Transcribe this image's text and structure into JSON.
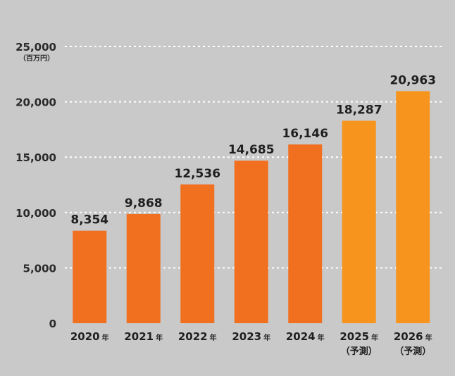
{
  "chart_data": {
    "type": "bar",
    "unit_label": "（百万円）",
    "categories": [
      "2020",
      "2021",
      "2022",
      "2023",
      "2024",
      "2025",
      "2026"
    ],
    "category_suffix": "年",
    "category_notes": [
      "",
      "",
      "",
      "",
      "",
      "（予測）",
      "（予測）"
    ],
    "values": [
      8354,
      9868,
      12536,
      14685,
      16146,
      18287,
      20963
    ],
    "value_labels": [
      "8,354",
      "9,868",
      "12,536",
      "14,685",
      "16,146",
      "18,287",
      "20,963"
    ],
    "forecast": [
      false,
      false,
      false,
      false,
      false,
      true,
      true
    ],
    "ylim": [
      0,
      25000
    ],
    "yticks": [
      0,
      5000,
      10000,
      15000,
      20000,
      25000
    ],
    "ytick_labels": [
      "0",
      "5,000",
      "10,000",
      "15,000",
      "20,000",
      "25,000"
    ],
    "grid": true,
    "grid_style": "dotted-white",
    "colors": {
      "actual": "#f07020",
      "forecast": "#f7941d",
      "background": "#c9c9c9",
      "grid": "#ffffff",
      "text": "#1f1f1f"
    }
  }
}
